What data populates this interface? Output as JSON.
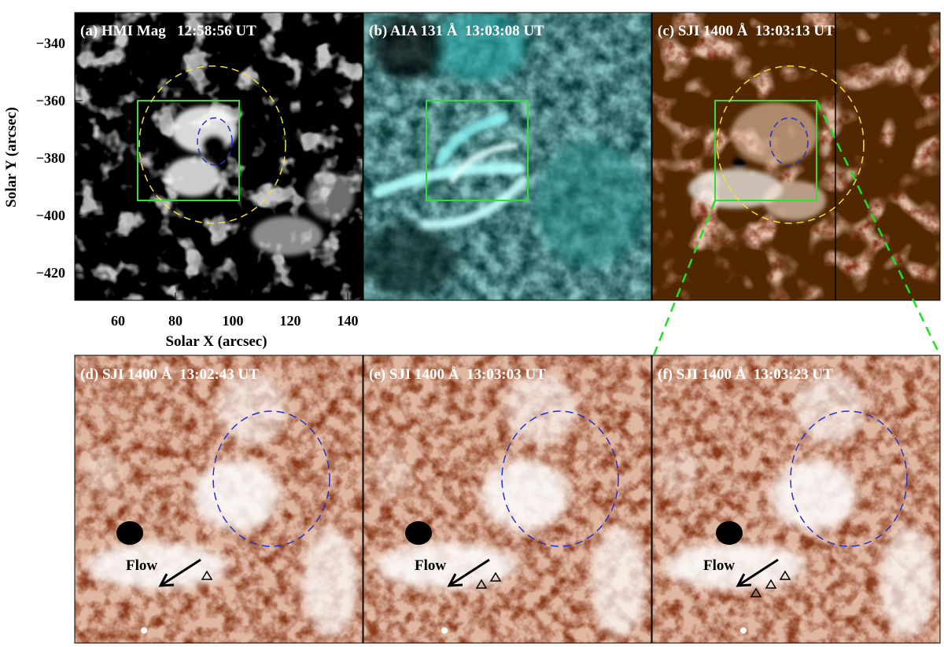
{
  "figure": {
    "panels": {
      "a": {
        "label": "(a) HMI Mag   12:58:56 UT"
      },
      "b": {
        "label": "(b) AIA 131 Å  13:03:08 UT"
      },
      "c": {
        "label": "(c) SJI 1400 Å  13:03:13 UT"
      },
      "d": {
        "label": "(d) SJI 1400 Å  13:02:43 UT",
        "annotation": "Flow"
      },
      "e": {
        "label": "(e) SJI 1400 Å  13:03:03 UT",
        "annotation": "Flow"
      },
      "f": {
        "label": "(f) SJI 1400 Å  13:03:23 UT",
        "annotation": "Flow"
      }
    },
    "xlabel": "Solar X (arcsec)",
    "ylabel": "Solar Y (arcsec)",
    "xticks": [
      "60",
      "80",
      "100",
      "120",
      "140"
    ],
    "yticks": [
      "−340",
      "−360",
      "−380",
      "−400",
      "−420"
    ],
    "colors": {
      "box": "#33dd33",
      "outer_circle": "#f2e235",
      "inner_circle": "#2630c8",
      "zoom_lines": "#22dd22",
      "hmi_gray": "#8c8c8c",
      "aia_cyan": "#1aa6a6",
      "sji_brown": "#7a2f12"
    }
  }
}
